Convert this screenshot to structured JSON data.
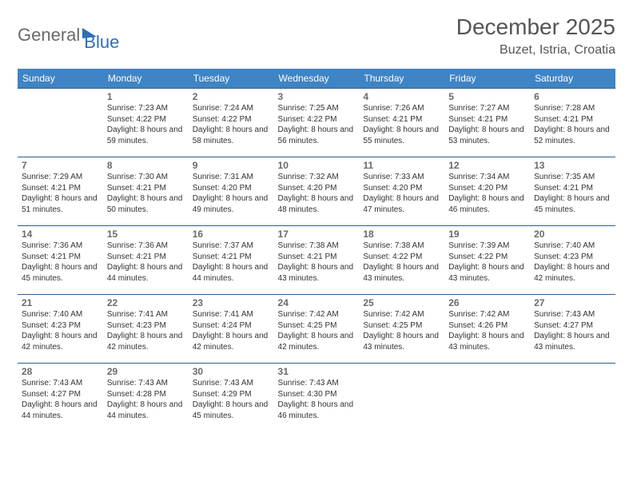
{
  "brand": {
    "part1": "General",
    "part2": "Blue"
  },
  "title": "December 2025",
  "location": "Buzet, Istria, Croatia",
  "header_bg": "#3f84c5",
  "row_border": "#2d5e8e",
  "days": [
    "Sunday",
    "Monday",
    "Tuesday",
    "Wednesday",
    "Thursday",
    "Friday",
    "Saturday"
  ],
  "weeks": [
    [
      null,
      {
        "n": "1",
        "sr": "7:23 AM",
        "ss": "4:22 PM",
        "dl": "8 hours and 59 minutes."
      },
      {
        "n": "2",
        "sr": "7:24 AM",
        "ss": "4:22 PM",
        "dl": "8 hours and 58 minutes."
      },
      {
        "n": "3",
        "sr": "7:25 AM",
        "ss": "4:22 PM",
        "dl": "8 hours and 56 minutes."
      },
      {
        "n": "4",
        "sr": "7:26 AM",
        "ss": "4:21 PM",
        "dl": "8 hours and 55 minutes."
      },
      {
        "n": "5",
        "sr": "7:27 AM",
        "ss": "4:21 PM",
        "dl": "8 hours and 53 minutes."
      },
      {
        "n": "6",
        "sr": "7:28 AM",
        "ss": "4:21 PM",
        "dl": "8 hours and 52 minutes."
      }
    ],
    [
      {
        "n": "7",
        "sr": "7:29 AM",
        "ss": "4:21 PM",
        "dl": "8 hours and 51 minutes."
      },
      {
        "n": "8",
        "sr": "7:30 AM",
        "ss": "4:21 PM",
        "dl": "8 hours and 50 minutes."
      },
      {
        "n": "9",
        "sr": "7:31 AM",
        "ss": "4:20 PM",
        "dl": "8 hours and 49 minutes."
      },
      {
        "n": "10",
        "sr": "7:32 AM",
        "ss": "4:20 PM",
        "dl": "8 hours and 48 minutes."
      },
      {
        "n": "11",
        "sr": "7:33 AM",
        "ss": "4:20 PM",
        "dl": "8 hours and 47 minutes."
      },
      {
        "n": "12",
        "sr": "7:34 AM",
        "ss": "4:20 PM",
        "dl": "8 hours and 46 minutes."
      },
      {
        "n": "13",
        "sr": "7:35 AM",
        "ss": "4:21 PM",
        "dl": "8 hours and 45 minutes."
      }
    ],
    [
      {
        "n": "14",
        "sr": "7:36 AM",
        "ss": "4:21 PM",
        "dl": "8 hours and 45 minutes."
      },
      {
        "n": "15",
        "sr": "7:36 AM",
        "ss": "4:21 PM",
        "dl": "8 hours and 44 minutes."
      },
      {
        "n": "16",
        "sr": "7:37 AM",
        "ss": "4:21 PM",
        "dl": "8 hours and 44 minutes."
      },
      {
        "n": "17",
        "sr": "7:38 AM",
        "ss": "4:21 PM",
        "dl": "8 hours and 43 minutes."
      },
      {
        "n": "18",
        "sr": "7:38 AM",
        "ss": "4:22 PM",
        "dl": "8 hours and 43 minutes."
      },
      {
        "n": "19",
        "sr": "7:39 AM",
        "ss": "4:22 PM",
        "dl": "8 hours and 43 minutes."
      },
      {
        "n": "20",
        "sr": "7:40 AM",
        "ss": "4:23 PM",
        "dl": "8 hours and 42 minutes."
      }
    ],
    [
      {
        "n": "21",
        "sr": "7:40 AM",
        "ss": "4:23 PM",
        "dl": "8 hours and 42 minutes."
      },
      {
        "n": "22",
        "sr": "7:41 AM",
        "ss": "4:23 PM",
        "dl": "8 hours and 42 minutes."
      },
      {
        "n": "23",
        "sr": "7:41 AM",
        "ss": "4:24 PM",
        "dl": "8 hours and 42 minutes."
      },
      {
        "n": "24",
        "sr": "7:42 AM",
        "ss": "4:25 PM",
        "dl": "8 hours and 42 minutes."
      },
      {
        "n": "25",
        "sr": "7:42 AM",
        "ss": "4:25 PM",
        "dl": "8 hours and 43 minutes."
      },
      {
        "n": "26",
        "sr": "7:42 AM",
        "ss": "4:26 PM",
        "dl": "8 hours and 43 minutes."
      },
      {
        "n": "27",
        "sr": "7:43 AM",
        "ss": "4:27 PM",
        "dl": "8 hours and 43 minutes."
      }
    ],
    [
      {
        "n": "28",
        "sr": "7:43 AM",
        "ss": "4:27 PM",
        "dl": "8 hours and 44 minutes."
      },
      {
        "n": "29",
        "sr": "7:43 AM",
        "ss": "4:28 PM",
        "dl": "8 hours and 44 minutes."
      },
      {
        "n": "30",
        "sr": "7:43 AM",
        "ss": "4:29 PM",
        "dl": "8 hours and 45 minutes."
      },
      {
        "n": "31",
        "sr": "7:43 AM",
        "ss": "4:30 PM",
        "dl": "8 hours and 46 minutes."
      },
      null,
      null,
      null
    ]
  ],
  "labels": {
    "sunrise": "Sunrise:",
    "sunset": "Sunset:",
    "daylight": "Daylight:"
  }
}
